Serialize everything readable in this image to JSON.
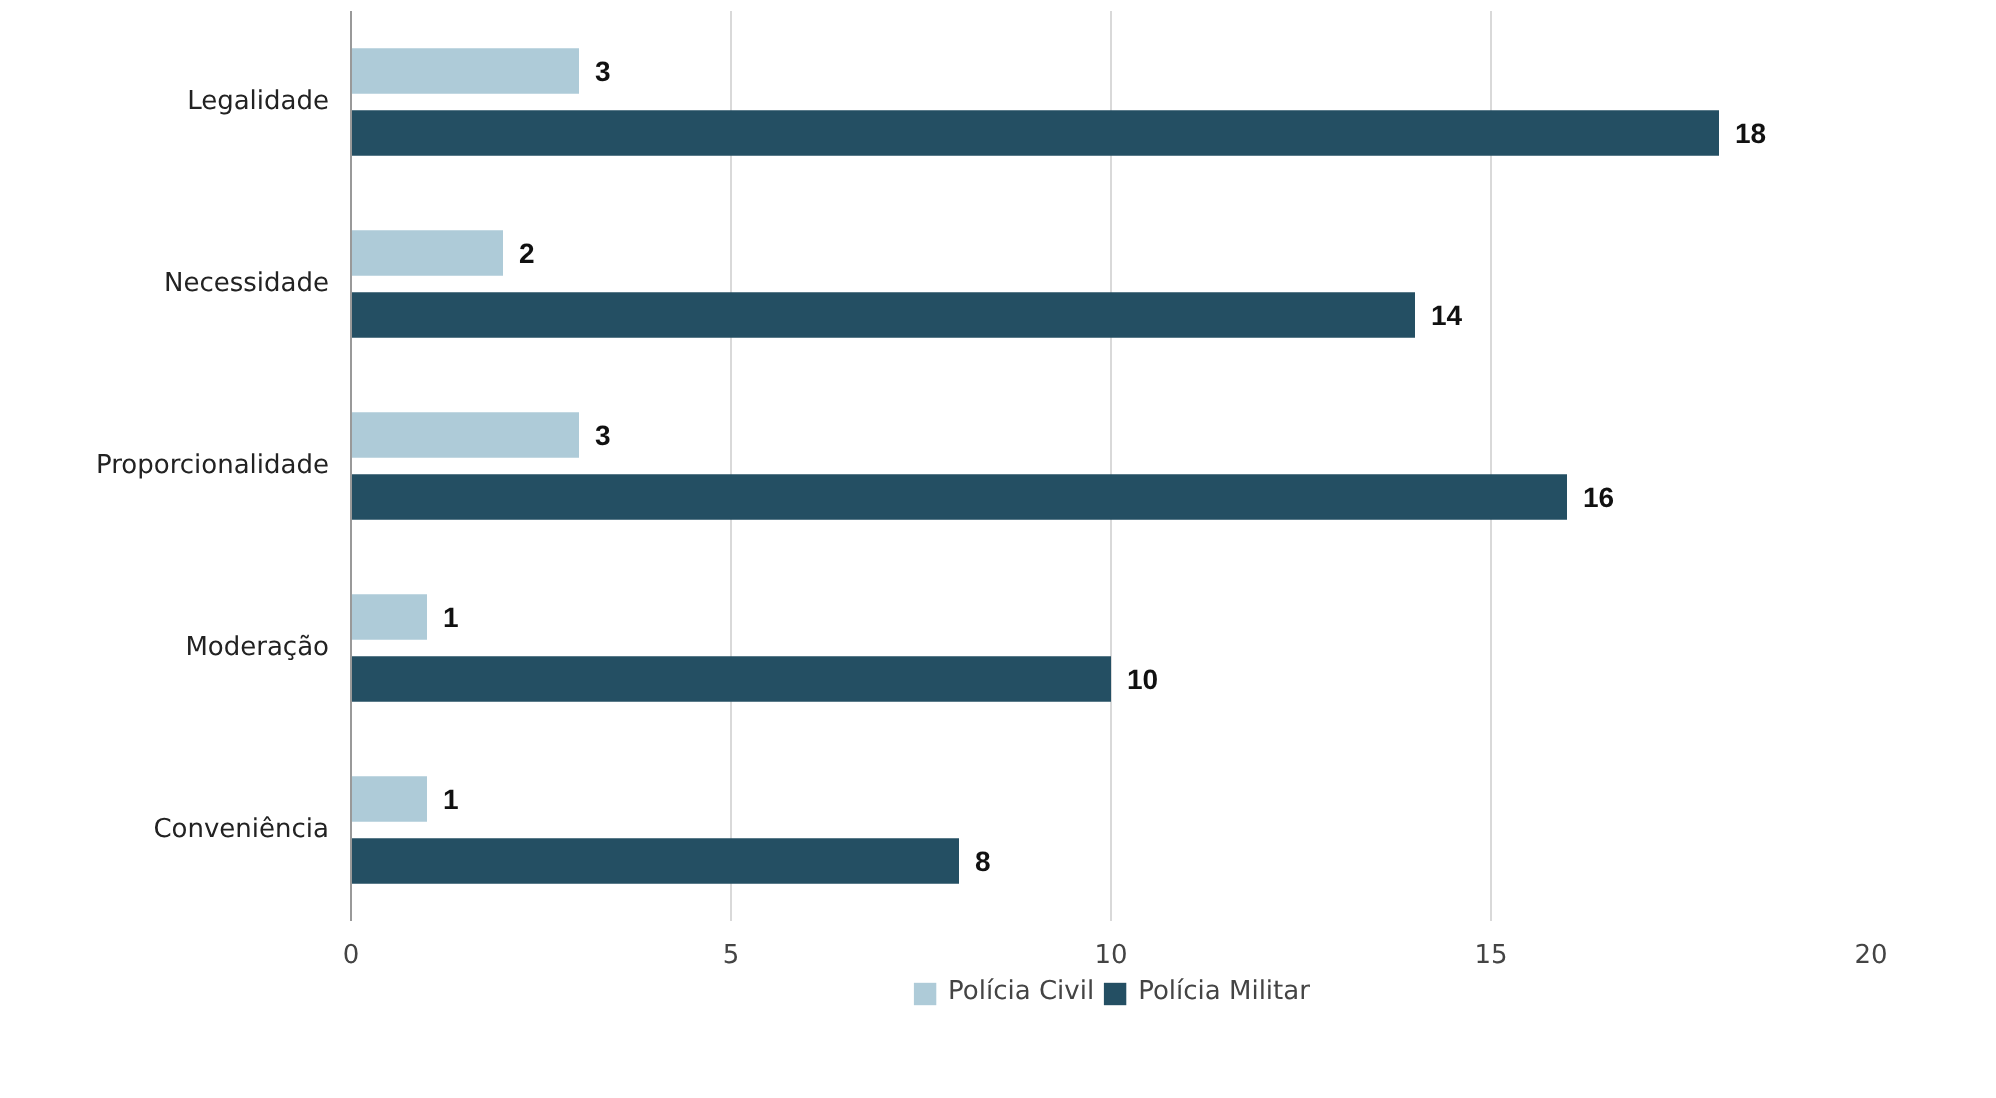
{
  "chart_data": {
    "type": "bar",
    "orientation": "horizontal",
    "categories": [
      "Legalidade",
      "Necessidade",
      "Proporcionalidade",
      "Moderação",
      "Conveniência"
    ],
    "series": [
      {
        "name": "Polícia Civil",
        "color": "#aecbd8",
        "values": [
          3,
          2,
          3,
          1,
          1
        ]
      },
      {
        "name": "Polícia Militar",
        "color": "#244f63",
        "values": [
          18,
          14,
          16,
          10,
          8
        ]
      }
    ],
    "xlim": [
      0,
      20
    ],
    "xticks": [
      0,
      5,
      10,
      15,
      20
    ],
    "grid": "x",
    "legend": "bottom",
    "data_labels": true
  }
}
